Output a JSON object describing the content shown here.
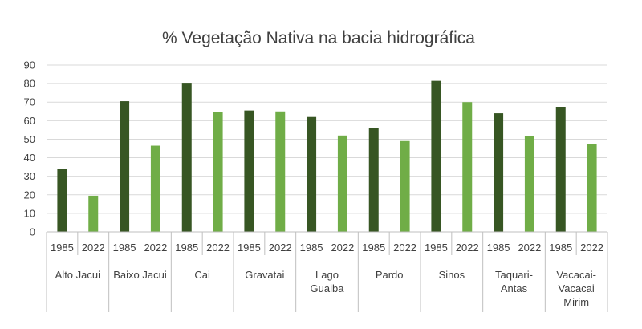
{
  "chart_data": {
    "type": "bar",
    "title": "% Vegetação Nativa na bacia hidrográfica",
    "xlabel": "",
    "ylabel": "",
    "ylim": [
      0,
      90
    ],
    "yticks": [
      0,
      10,
      20,
      30,
      40,
      50,
      60,
      70,
      80,
      90
    ],
    "grid": true,
    "legend": "none",
    "colors": {
      "1985": "#375623",
      "2022": "#70ad47"
    },
    "groups": [
      {
        "label_lines": [
          "Alto Jacui"
        ],
        "bars": [
          {
            "year": "1985",
            "value": 34
          },
          {
            "year": "2022",
            "value": 19.5
          }
        ]
      },
      {
        "label_lines": [
          "Baixo Jacui"
        ],
        "bars": [
          {
            "year": "1985",
            "value": 70.5
          },
          {
            "year": "2022",
            "value": 46.5
          }
        ]
      },
      {
        "label_lines": [
          "Cai"
        ],
        "bars": [
          {
            "year": "1985",
            "value": 80
          },
          {
            "year": "2022",
            "value": 64.5
          }
        ]
      },
      {
        "label_lines": [
          "Gravatai"
        ],
        "bars": [
          {
            "year": "1985",
            "value": 65.5
          },
          {
            "year": "2022",
            "value": 65
          }
        ]
      },
      {
        "label_lines": [
          "Lago",
          "Guaiba"
        ],
        "bars": [
          {
            "year": "1985",
            "value": 62
          },
          {
            "year": "2022",
            "value": 52
          }
        ]
      },
      {
        "label_lines": [
          "Pardo"
        ],
        "bars": [
          {
            "year": "1985",
            "value": 56
          },
          {
            "year": "2022",
            "value": 49
          }
        ]
      },
      {
        "label_lines": [
          "Sinos"
        ],
        "bars": [
          {
            "year": "1985",
            "value": 81.5
          },
          {
            "year": "2022",
            "value": 70
          }
        ]
      },
      {
        "label_lines": [
          "Taquari-",
          "Antas"
        ],
        "bars": [
          {
            "year": "1985",
            "value": 64
          },
          {
            "year": "2022",
            "value": 51.5
          }
        ]
      },
      {
        "label_lines": [
          "Vacacai-",
          "Vacacai",
          "Mirim"
        ],
        "bars": [
          {
            "year": "1985",
            "value": 67.5
          },
          {
            "year": "2022",
            "value": 47.5
          }
        ]
      }
    ]
  }
}
